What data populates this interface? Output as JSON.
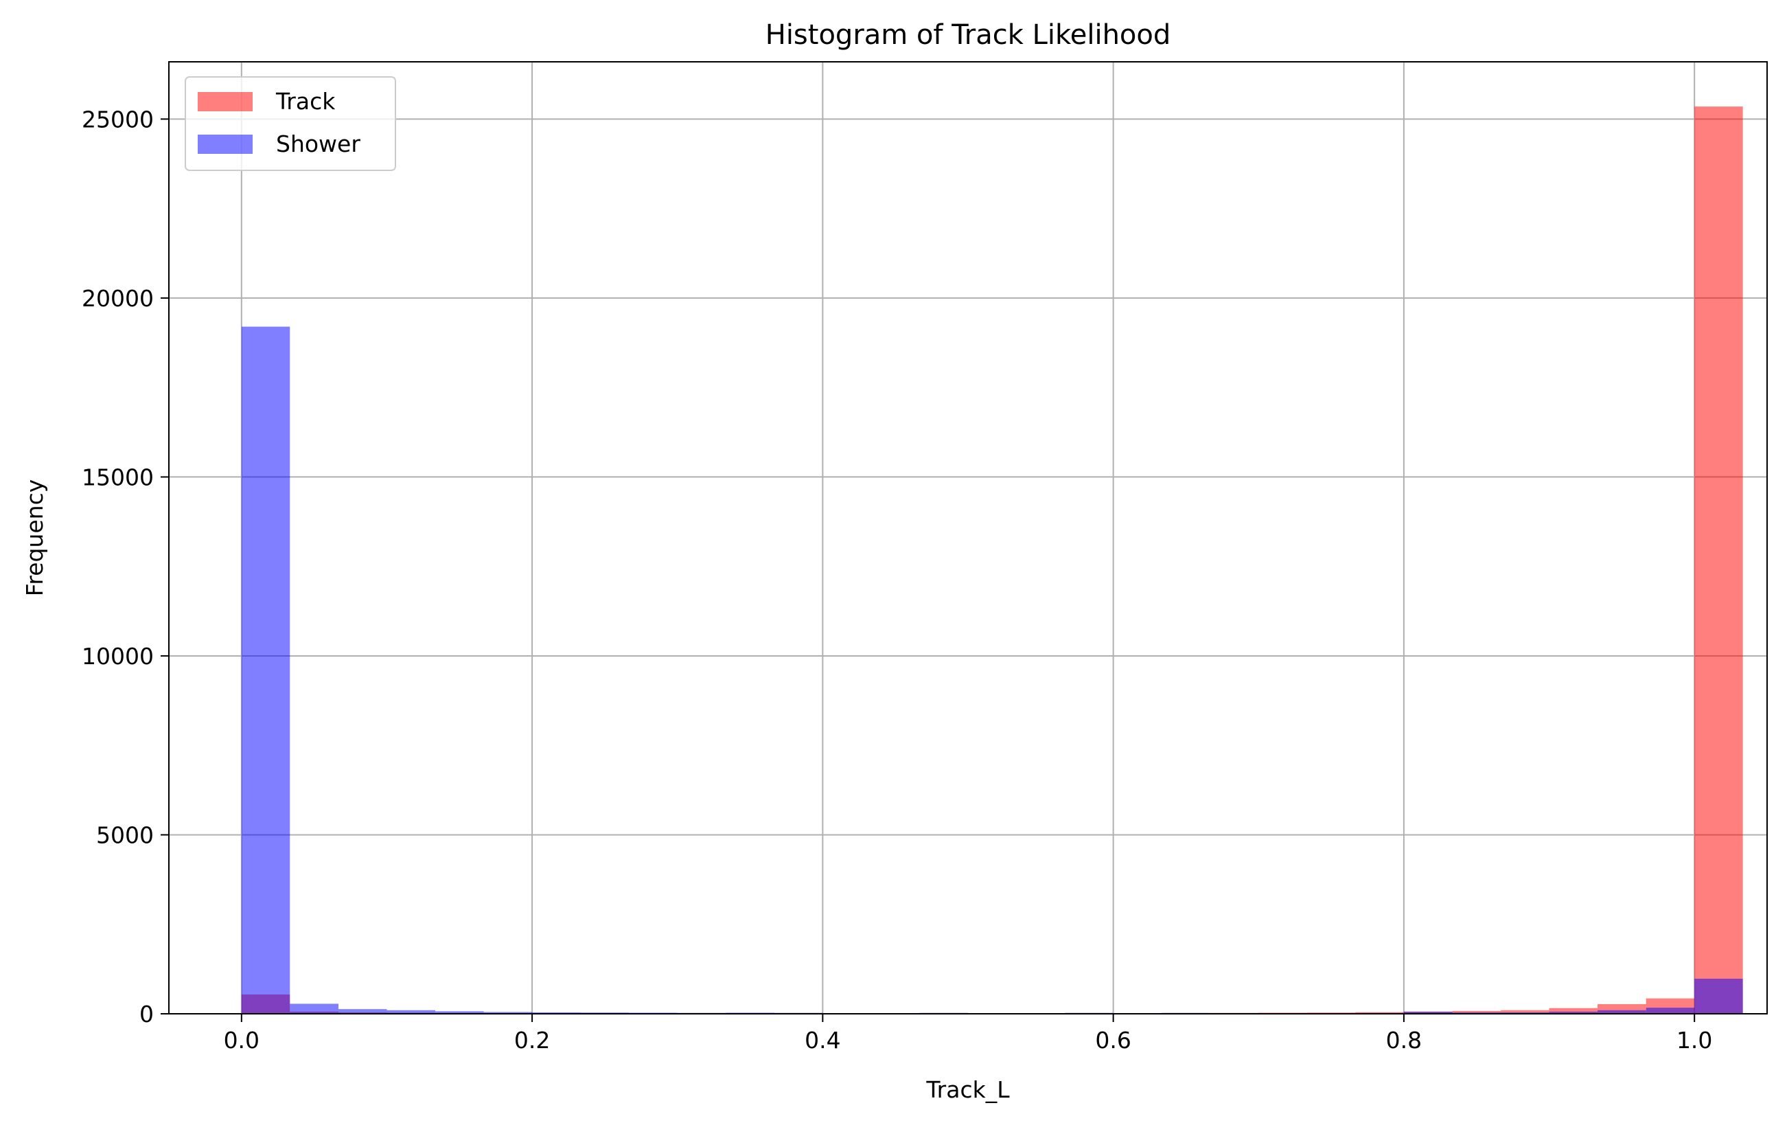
{
  "chart_data": {
    "type": "bar",
    "title": "Histogram of Track Likelihood",
    "xlabel": "Track_L",
    "ylabel": "Frequency",
    "xlim": [
      -0.05,
      1.05
    ],
    "ylim": [
      0,
      26600
    ],
    "xticks": [
      "0.0",
      "0.2",
      "0.4",
      "0.6",
      "0.8",
      "1.0"
    ],
    "xtick_values": [
      0.0,
      0.2,
      0.4,
      0.6,
      0.8,
      1.0
    ],
    "yticks": [
      "0",
      "5000",
      "10000",
      "15000",
      "20000",
      "25000"
    ],
    "ytick_values": [
      0,
      5000,
      10000,
      15000,
      20000,
      25000
    ],
    "grid": true,
    "legend_position": "upper-left",
    "bin_edges": [
      0.0,
      0.0333,
      0.0667,
      0.1,
      0.1333,
      0.1667,
      0.2,
      0.2333,
      0.2667,
      0.3,
      0.3333,
      0.3667,
      0.4,
      0.4333,
      0.4667,
      0.5,
      0.5333,
      0.5667,
      0.6,
      0.6333,
      0.6667,
      0.7,
      0.7333,
      0.7667,
      0.8,
      0.8333,
      0.8667,
      0.9,
      0.9333,
      0.9667,
      1.0
    ],
    "series": [
      {
        "name": "Track",
        "color": "#ff0000",
        "alpha": 0.5,
        "values": [
          540,
          60,
          40,
          30,
          25,
          20,
          20,
          20,
          15,
          15,
          20,
          20,
          15,
          15,
          15,
          15,
          20,
          20,
          20,
          20,
          25,
          30,
          35,
          45,
          60,
          80,
          100,
          160,
          270,
          430,
          25350
        ]
      },
      {
        "name": "Shower",
        "color": "#0000ff",
        "alpha": 0.5,
        "values": [
          19200,
          280,
          130,
          100,
          70,
          50,
          40,
          35,
          30,
          25,
          30,
          25,
          20,
          20,
          25,
          20,
          15,
          25,
          20,
          25,
          20,
          20,
          20,
          25,
          60,
          40,
          40,
          60,
          100,
          170,
          980
        ]
      }
    ]
  }
}
